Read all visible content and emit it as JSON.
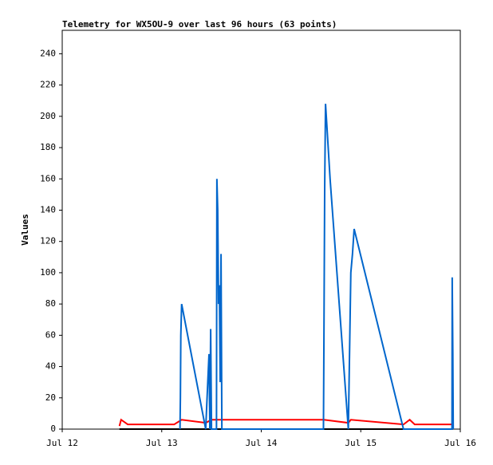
{
  "chart_data": {
    "type": "line",
    "title": "Telemetry for WX5OU-9 over last 96 hours (63 points)",
    "y_label": "Values",
    "xlim": [
      0,
      96
    ],
    "xticks": [
      {
        "value": 0,
        "label": "Jul 12"
      },
      {
        "value": 24,
        "label": "Jul 13"
      },
      {
        "value": 48,
        "label": "Jul 14"
      },
      {
        "value": 72,
        "label": "Jul 15"
      },
      {
        "value": 96,
        "label": "Jul 16"
      }
    ],
    "ylim": [
      0,
      255
    ],
    "yticks": [
      0,
      20,
      40,
      60,
      80,
      100,
      120,
      140,
      160,
      180,
      200,
      220,
      240
    ],
    "series": [
      {
        "color": "#000000",
        "x": [
          13.8,
          94.2
        ],
        "values": [
          0,
          0
        ]
      },
      {
        "color": "#ff0000",
        "x": [
          13.8,
          14.2,
          15.8,
          27.0,
          28.8,
          34.6,
          36.0,
          63.1,
          69.0,
          69.6,
          82.3,
          83.8,
          85.0,
          94.0,
          94.2
        ],
        "values": [
          2,
          6,
          3,
          3,
          6,
          4,
          6,
          6,
          4,
          6,
          3,
          6,
          3,
          3,
          6
        ]
      },
      {
        "color": "#0066cc",
        "x": [
          28.4,
          28.5,
          28.6,
          28.8,
          34.6,
          35.4,
          35.6,
          35.8,
          36.0,
          37.2,
          37.3,
          37.5,
          37.7,
          37.9,
          38.1,
          38.3,
          38.5,
          63.0,
          63.1,
          63.3,
          63.5,
          63.8,
          64.6,
          69.0,
          69.6,
          70.0,
          70.4,
          82.3,
          94.0,
          94.05,
          94.2,
          94.3
        ],
        "values": [
          0,
          20,
          60,
          80,
          0,
          48,
          0,
          64,
          0,
          0,
          160,
          140,
          80,
          92,
          30,
          112,
          0,
          0,
          50,
          155,
          208,
          195,
          160,
          0,
          100,
          112,
          128,
          0,
          0,
          97,
          48,
          0
        ]
      }
    ]
  }
}
